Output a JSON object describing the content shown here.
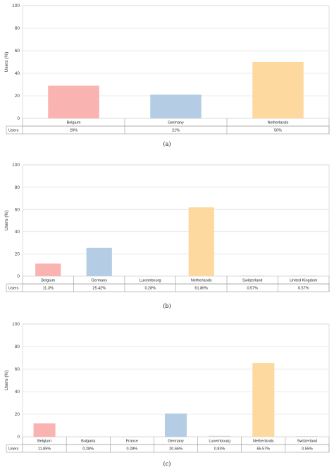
{
  "colors": [
    "#f9b3b0",
    "#b4cde4",
    "#fdd9a0"
  ],
  "chart_data": [
    {
      "type": "bar",
      "caption": "(a)",
      "ylabel": "Users (%)",
      "ylim": [
        0,
        100
      ],
      "yticks": [
        0,
        20,
        40,
        60,
        80,
        100
      ],
      "row_label": "Users",
      "categories": [
        "Belgium",
        "Germany",
        "Netherlands"
      ],
      "values": [
        29,
        21,
        50
      ],
      "value_labels": [
        "29%",
        "21%",
        "50%"
      ],
      "bar_colors": [
        "#f9b3b0",
        "#b4cde4",
        "#fdd9a0"
      ],
      "grid": true
    },
    {
      "type": "bar",
      "caption": "(b)",
      "ylabel": "Users (%)",
      "ylim": [
        0,
        100
      ],
      "yticks": [
        0,
        20,
        40,
        60,
        80,
        100
      ],
      "row_label": "Users",
      "categories": [
        "Belgium",
        "Germany",
        "Luxembourg",
        "Netherlands",
        "Switzerland",
        "United Kingdom"
      ],
      "values": [
        11.3,
        25.42,
        0.28,
        61.86,
        0.57,
        0.57
      ],
      "value_labels": [
        "11.3%",
        "25.42%",
        "0.28%",
        "61.86%",
        "0.57%",
        "0.57%"
      ],
      "bar_colors": [
        "#f9b3b0",
        "#b4cde4",
        "#d9d9d9",
        "#fdd9a0",
        "#d9d9d9",
        "#d9d9d9"
      ],
      "grid": true
    },
    {
      "type": "bar",
      "caption": "(c)",
      "ylabel": "Users (%)",
      "ylim": [
        0,
        100
      ],
      "yticks": [
        0,
        20,
        40,
        60,
        80,
        100
      ],
      "row_label": "Users",
      "categories": [
        "Belgium",
        "Bulgaria",
        "France",
        "Germany",
        "Luxembourg",
        "Netherlands",
        "Switzerland"
      ],
      "values": [
        11.85,
        0.28,
        0.28,
        20.66,
        0.83,
        65.57,
        0.55
      ],
      "value_labels": [
        "11.85%",
        "0.28%",
        "0.28%",
        "20.66%",
        "0.83%",
        "65.57%",
        "0.55%"
      ],
      "bar_colors": [
        "#f9b3b0",
        "#d9d9d9",
        "#d9d9d9",
        "#b4cde4",
        "#d9d9d9",
        "#fdd9a0",
        "#d9d9d9"
      ],
      "grid": true
    }
  ]
}
